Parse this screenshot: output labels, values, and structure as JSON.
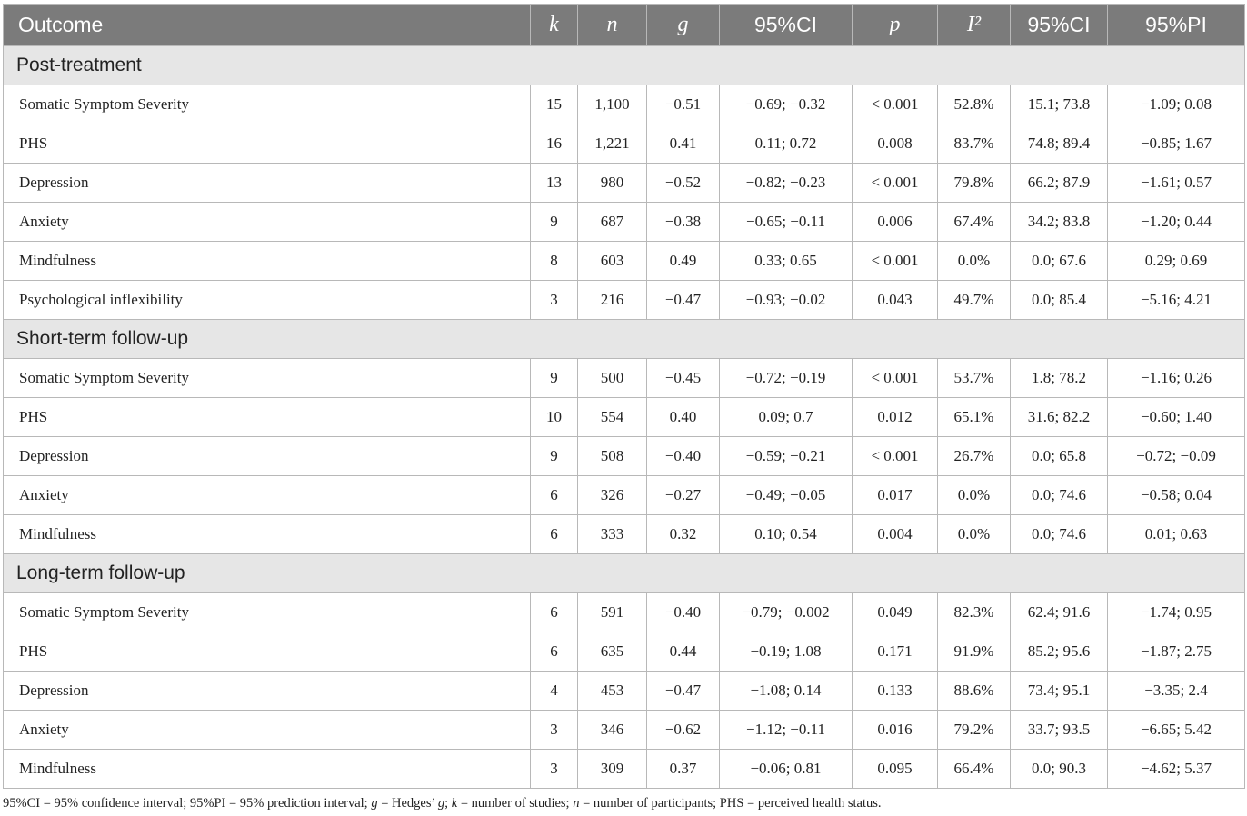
{
  "table": {
    "headers": [
      "Outcome",
      "k",
      "n",
      "g",
      "95%CI",
      "p",
      "I²",
      "95%CI",
      "95%PI"
    ],
    "sections": [
      {
        "title": "Post-treatment",
        "rows": [
          [
            "Somatic Symptom Severity",
            "15",
            "1,100",
            "−0.51",
            "−0.69; −0.32",
            "< 0.001",
            "52.8%",
            "15.1; 73.8",
            "−1.09; 0.08"
          ],
          [
            "PHS",
            "16",
            "1,221",
            "0.41",
            "0.11; 0.72",
            "0.008",
            "83.7%",
            "74.8; 89.4",
            "−0.85; 1.67"
          ],
          [
            "Depression",
            "13",
            "980",
            "−0.52",
            "−0.82; −0.23",
            "< 0.001",
            "79.8%",
            "66.2; 87.9",
            "−1.61; 0.57"
          ],
          [
            "Anxiety",
            "9",
            "687",
            "−0.38",
            "−0.65; −0.11",
            "0.006",
            "67.4%",
            "34.2; 83.8",
            "−1.20; 0.44"
          ],
          [
            "Mindfulness",
            "8",
            "603",
            "0.49",
            "0.33; 0.65",
            "< 0.001",
            "0.0%",
            "0.0; 67.6",
            "0.29; 0.69"
          ],
          [
            "Psychological inflexibility",
            "3",
            "216",
            "−0.47",
            "−0.93; −0.02",
            "0.043",
            "49.7%",
            "0.0; 85.4",
            "−5.16; 4.21"
          ]
        ]
      },
      {
        "title": "Short-term follow-up",
        "rows": [
          [
            "Somatic Symptom Severity",
            "9",
            "500",
            "−0.45",
            "−0.72; −0.19",
            "< 0.001",
            "53.7%",
            "1.8; 78.2",
            "−1.16; 0.26"
          ],
          [
            "PHS",
            "10",
            "554",
            "0.40",
            "0.09; 0.7",
            "0.012",
            "65.1%",
            "31.6; 82.2",
            "−0.60; 1.40"
          ],
          [
            "Depression",
            "9",
            "508",
            "−0.40",
            "−0.59; −0.21",
            "< 0.001",
            "26.7%",
            "0.0; 65.8",
            "−0.72; −0.09"
          ],
          [
            "Anxiety",
            "6",
            "326",
            "−0.27",
            "−0.49; −0.05",
            "0.017",
            "0.0%",
            "0.0; 74.6",
            "−0.58; 0.04"
          ],
          [
            "Mindfulness",
            "6",
            "333",
            "0.32",
            "0.10; 0.54",
            "0.004",
            "0.0%",
            "0.0; 74.6",
            "0.01; 0.63"
          ]
        ]
      },
      {
        "title": "Long-term follow-up",
        "rows": [
          [
            "Somatic Symptom Severity",
            "6",
            "591",
            "−0.40",
            "−0.79; −0.002",
            "0.049",
            "82.3%",
            "62.4; 91.6",
            "−1.74; 0.95"
          ],
          [
            "PHS",
            "6",
            "635",
            "0.44",
            "−0.19; 1.08",
            "0.171",
            "91.9%",
            "85.2; 95.6",
            "−1.87; 2.75"
          ],
          [
            "Depression",
            "4",
            "453",
            "−0.47",
            "−1.08; 0.14",
            "0.133",
            "88.6%",
            "73.4; 95.1",
            "−3.35; 2.4"
          ],
          [
            "Anxiety",
            "3",
            "346",
            "−0.62",
            "−1.12; −0.11",
            "0.016",
            "79.2%",
            "33.7; 93.5",
            "−6.65; 5.42"
          ],
          [
            "Mindfulness",
            "3",
            "309",
            "0.37",
            "−0.06; 0.81",
            "0.095",
            "66.4%",
            "0.0; 90.3",
            "−4.62; 5.37"
          ]
        ]
      }
    ]
  },
  "footnote": {
    "p1": "95%CI = 95% confidence interval; 95%PI = 95% prediction interval; ",
    "g1": "g",
    "p2": " = Hedges’ ",
    "g2": "g",
    "p3": "; ",
    "k": "k",
    "p4": " = number of studies; ",
    "n": "n",
    "p5": " = number of participants; PHS = perceived health status."
  }
}
